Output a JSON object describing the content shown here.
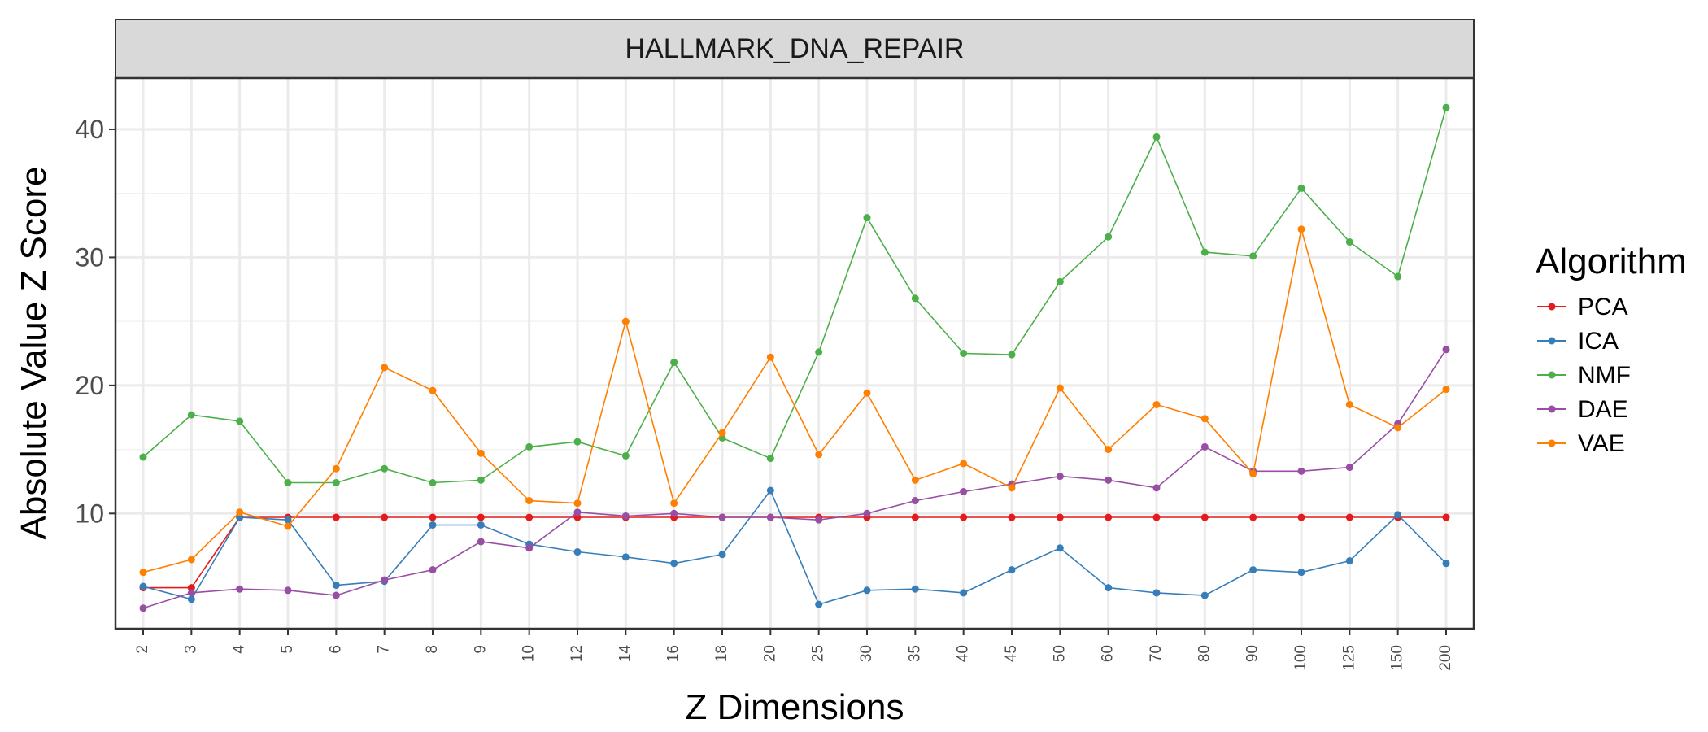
{
  "chart_data": {
    "type": "line",
    "title": "HALLMARK_DNA_REPAIR",
    "xlabel": "Z Dimensions",
    "ylabel": "Absolute Value Z Score",
    "ylim": [
      1,
      44
    ],
    "yticks": [
      10,
      20,
      30,
      40
    ],
    "grid": true,
    "legend_title": "Algorithm",
    "legend_position": "right",
    "categories": [
      "2",
      "3",
      "4",
      "5",
      "6",
      "7",
      "8",
      "9",
      "10",
      "12",
      "14",
      "16",
      "18",
      "20",
      "25",
      "30",
      "35",
      "40",
      "45",
      "50",
      "60",
      "70",
      "80",
      "90",
      "100",
      "125",
      "150",
      "200"
    ],
    "series": [
      {
        "name": "PCA",
        "color": "#e41a1c",
        "values": [
          4.2,
          4.2,
          9.7,
          9.7,
          9.7,
          9.7,
          9.7,
          9.7,
          9.7,
          9.7,
          9.7,
          9.7,
          9.7,
          9.7,
          9.7,
          9.7,
          9.7,
          9.7,
          9.7,
          9.7,
          9.7,
          9.7,
          9.7,
          9.7,
          9.7,
          9.7,
          9.7,
          9.7
        ]
      },
      {
        "name": "ICA",
        "color": "#377eb8",
        "values": [
          4.3,
          3.3,
          9.7,
          9.5,
          4.4,
          4.7,
          9.1,
          9.1,
          7.6,
          7.0,
          6.6,
          6.1,
          6.8,
          11.8,
          2.9,
          4.0,
          4.1,
          3.8,
          5.6,
          7.3,
          4.2,
          3.8,
          3.6,
          5.6,
          5.4,
          6.3,
          9.9,
          6.1
        ]
      },
      {
        "name": "NMF",
        "color": "#4daf4a",
        "values": [
          14.4,
          17.7,
          17.2,
          12.4,
          12.4,
          13.5,
          12.4,
          12.6,
          15.2,
          15.6,
          14.5,
          21.8,
          15.9,
          14.3,
          22.6,
          33.1,
          26.8,
          22.5,
          22.4,
          28.1,
          31.6,
          39.4,
          30.4,
          30.1,
          35.4,
          31.2,
          28.5,
          41.7
        ]
      },
      {
        "name": "DAE",
        "color": "#984ea3",
        "values": [
          2.6,
          3.8,
          4.1,
          4.0,
          3.6,
          4.8,
          5.6,
          7.8,
          7.3,
          10.1,
          9.8,
          10.0,
          9.7,
          9.7,
          9.5,
          10.0,
          11.0,
          11.7,
          12.3,
          12.9,
          12.6,
          12.0,
          15.2,
          13.3,
          13.3,
          13.6,
          17.0,
          22.8
        ]
      },
      {
        "name": "VAE",
        "color": "#ff7f00",
        "values": [
          5.4,
          6.4,
          10.1,
          9.0,
          13.5,
          21.4,
          19.6,
          14.7,
          11.0,
          10.8,
          25.0,
          10.8,
          16.3,
          22.2,
          14.6,
          19.4,
          12.6,
          13.9,
          12.0,
          19.8,
          15.0,
          18.5,
          17.4,
          13.1,
          32.2,
          18.5,
          16.7,
          19.7
        ]
      }
    ]
  }
}
